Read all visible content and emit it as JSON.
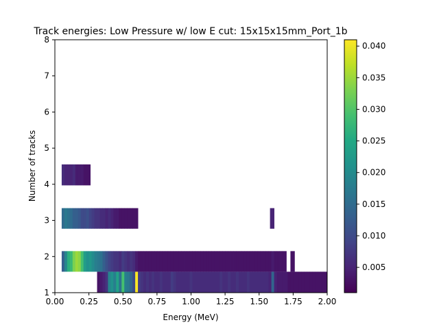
{
  "chart_data": {
    "type": "heatmap",
    "title": "Track energies: Low Pressure w/ low E cut: 15x15x15mm_Port_1b",
    "xlabel": "Energy (MeV)",
    "ylabel": "Number of tracks",
    "xlim": [
      0.0,
      2.0
    ],
    "ylim": [
      1,
      8
    ],
    "x_ticks": [
      "0.00",
      "0.25",
      "0.50",
      "0.75",
      "1.00",
      "1.25",
      "1.50",
      "1.75",
      "2.00"
    ],
    "y_ticks": [
      "1",
      "2",
      "3",
      "4",
      "5",
      "6",
      "7",
      "8"
    ],
    "colorbar": {
      "colormap": "viridis",
      "min": 0.001,
      "max": 0.041,
      "ticks": [
        "0.005",
        "0.010",
        "0.015",
        "0.020",
        "0.025",
        "0.030",
        "0.035",
        "0.040"
      ]
    },
    "bin_width": 0.02,
    "rows": [
      {
        "y": 1.0,
        "height": 0.58,
        "cells": [
          [
            0.31,
            0.33,
            0.003
          ],
          [
            0.33,
            0.35,
            0.004
          ],
          [
            0.35,
            0.37,
            0.005
          ],
          [
            0.37,
            0.39,
            0.007
          ],
          [
            0.39,
            0.41,
            0.019
          ],
          [
            0.41,
            0.43,
            0.021
          ],
          [
            0.43,
            0.45,
            0.018
          ],
          [
            0.45,
            0.47,
            0.024
          ],
          [
            0.47,
            0.49,
            0.016
          ],
          [
            0.49,
            0.51,
            0.029
          ],
          [
            0.51,
            0.53,
            0.018
          ],
          [
            0.53,
            0.55,
            0.017
          ],
          [
            0.55,
            0.57,
            0.014
          ],
          [
            0.57,
            0.59,
            0.01
          ],
          [
            0.59,
            0.61,
            0.041
          ],
          [
            0.61,
            0.63,
            0.008
          ],
          [
            0.63,
            0.65,
            0.007
          ],
          [
            0.65,
            0.67,
            0.006
          ],
          [
            0.67,
            0.69,
            0.007
          ],
          [
            0.69,
            0.71,
            0.006
          ],
          [
            0.71,
            0.73,
            0.007
          ],
          [
            0.73,
            0.75,
            0.006
          ],
          [
            0.75,
            0.77,
            0.006
          ],
          [
            0.77,
            0.79,
            0.007
          ],
          [
            0.79,
            0.81,
            0.006
          ],
          [
            0.81,
            0.83,
            0.006
          ],
          [
            0.83,
            0.85,
            0.006
          ],
          [
            0.85,
            0.87,
            0.008
          ],
          [
            0.87,
            0.89,
            0.007
          ],
          [
            0.89,
            0.91,
            0.006
          ],
          [
            0.91,
            0.93,
            0.006
          ],
          [
            0.93,
            0.95,
            0.006
          ],
          [
            0.95,
            0.97,
            0.006
          ],
          [
            0.97,
            0.99,
            0.006
          ],
          [
            0.99,
            1.01,
            0.007
          ],
          [
            1.01,
            1.03,
            0.006
          ],
          [
            1.03,
            1.05,
            0.006
          ],
          [
            1.05,
            1.07,
            0.006
          ],
          [
            1.07,
            1.09,
            0.006
          ],
          [
            1.09,
            1.11,
            0.006
          ],
          [
            1.11,
            1.13,
            0.006
          ],
          [
            1.13,
            1.15,
            0.006
          ],
          [
            1.15,
            1.17,
            0.006
          ],
          [
            1.17,
            1.19,
            0.006
          ],
          [
            1.19,
            1.21,
            0.006
          ],
          [
            1.21,
            1.23,
            0.007
          ],
          [
            1.23,
            1.25,
            0.006
          ],
          [
            1.25,
            1.27,
            0.006
          ],
          [
            1.27,
            1.29,
            0.007
          ],
          [
            1.29,
            1.31,
            0.006
          ],
          [
            1.31,
            1.33,
            0.006
          ],
          [
            1.33,
            1.35,
            0.007
          ],
          [
            1.35,
            1.37,
            0.006
          ],
          [
            1.37,
            1.39,
            0.006
          ],
          [
            1.39,
            1.41,
            0.006
          ],
          [
            1.41,
            1.43,
            0.007
          ],
          [
            1.43,
            1.45,
            0.006
          ],
          [
            1.45,
            1.47,
            0.006
          ],
          [
            1.47,
            1.49,
            0.006
          ],
          [
            1.49,
            1.51,
            0.006
          ],
          [
            1.51,
            1.53,
            0.006
          ],
          [
            1.53,
            1.55,
            0.006
          ],
          [
            1.55,
            1.57,
            0.006
          ],
          [
            1.57,
            1.59,
            0.005
          ],
          [
            1.59,
            1.61,
            0.014
          ],
          [
            1.61,
            1.63,
            0.005
          ],
          [
            1.63,
            1.65,
            0.004
          ],
          [
            1.65,
            1.67,
            0.004
          ],
          [
            1.67,
            1.69,
            0.004
          ],
          [
            1.69,
            1.71,
            0.004
          ],
          [
            1.71,
            1.73,
            0.003
          ],
          [
            1.73,
            1.75,
            0.003
          ],
          [
            1.75,
            1.77,
            0.003
          ],
          [
            1.77,
            1.79,
            0.003
          ],
          [
            1.79,
            1.81,
            0.003
          ],
          [
            1.81,
            1.83,
            0.003
          ],
          [
            1.83,
            1.85,
            0.003
          ],
          [
            1.85,
            1.87,
            0.003
          ],
          [
            1.87,
            1.89,
            0.003
          ],
          [
            1.89,
            1.91,
            0.003
          ],
          [
            1.91,
            1.93,
            0.003
          ],
          [
            1.93,
            1.95,
            0.003
          ],
          [
            1.95,
            1.97,
            0.003
          ],
          [
            1.97,
            2.0,
            0.003
          ]
        ]
      },
      {
        "y": 1.58,
        "height": 0.57,
        "cells": [
          [
            0.05,
            0.07,
            0.013
          ],
          [
            0.07,
            0.09,
            0.019
          ],
          [
            0.09,
            0.11,
            0.026
          ],
          [
            0.11,
            0.13,
            0.028
          ],
          [
            0.13,
            0.15,
            0.033
          ],
          [
            0.15,
            0.17,
            0.035
          ],
          [
            0.17,
            0.19,
            0.034
          ],
          [
            0.19,
            0.21,
            0.029
          ],
          [
            0.21,
            0.23,
            0.023
          ],
          [
            0.23,
            0.25,
            0.021
          ],
          [
            0.25,
            0.27,
            0.022
          ],
          [
            0.27,
            0.29,
            0.02
          ],
          [
            0.29,
            0.31,
            0.018
          ],
          [
            0.31,
            0.33,
            0.017
          ],
          [
            0.33,
            0.35,
            0.016
          ],
          [
            0.35,
            0.37,
            0.013
          ],
          [
            0.37,
            0.39,
            0.011
          ],
          [
            0.39,
            0.41,
            0.009
          ],
          [
            0.41,
            0.43,
            0.008
          ],
          [
            0.43,
            0.45,
            0.007
          ],
          [
            0.45,
            0.47,
            0.007
          ],
          [
            0.47,
            0.49,
            0.006
          ],
          [
            0.49,
            0.51,
            0.008
          ],
          [
            0.51,
            0.53,
            0.007
          ],
          [
            0.53,
            0.55,
            0.006
          ],
          [
            0.55,
            0.57,
            0.007
          ],
          [
            0.57,
            0.59,
            0.006
          ],
          [
            0.59,
            0.61,
            0.004
          ],
          [
            0.61,
            0.63,
            0.003
          ],
          [
            0.63,
            0.65,
            0.003
          ],
          [
            0.65,
            0.67,
            0.003
          ],
          [
            0.67,
            0.69,
            0.003
          ],
          [
            0.69,
            0.71,
            0.003
          ],
          [
            0.71,
            0.73,
            0.003
          ],
          [
            0.73,
            0.75,
            0.003
          ],
          [
            0.75,
            0.77,
            0.003
          ],
          [
            0.77,
            0.79,
            0.003
          ],
          [
            0.79,
            0.81,
            0.003
          ],
          [
            0.81,
            0.83,
            0.003
          ],
          [
            0.83,
            0.85,
            0.003
          ],
          [
            0.85,
            0.87,
            0.003
          ],
          [
            0.87,
            0.89,
            0.003
          ],
          [
            0.89,
            0.91,
            0.003
          ],
          [
            0.91,
            0.93,
            0.003
          ],
          [
            0.93,
            0.95,
            0.003
          ],
          [
            0.95,
            0.97,
            0.003
          ],
          [
            0.97,
            0.99,
            0.003
          ],
          [
            0.99,
            1.01,
            0.003
          ],
          [
            1.01,
            1.03,
            0.003
          ],
          [
            1.03,
            1.05,
            0.003
          ],
          [
            1.05,
            1.07,
            0.003
          ],
          [
            1.07,
            1.09,
            0.003
          ],
          [
            1.09,
            1.11,
            0.003
          ],
          [
            1.11,
            1.13,
            0.003
          ],
          [
            1.13,
            1.15,
            0.003
          ],
          [
            1.15,
            1.17,
            0.003
          ],
          [
            1.17,
            1.19,
            0.003
          ],
          [
            1.19,
            1.21,
            0.003
          ],
          [
            1.21,
            1.23,
            0.003
          ],
          [
            1.23,
            1.25,
            0.003
          ],
          [
            1.25,
            1.27,
            0.003
          ],
          [
            1.27,
            1.29,
            0.003
          ],
          [
            1.29,
            1.31,
            0.003
          ],
          [
            1.31,
            1.33,
            0.003
          ],
          [
            1.33,
            1.35,
            0.003
          ],
          [
            1.35,
            1.37,
            0.003
          ],
          [
            1.37,
            1.39,
            0.003
          ],
          [
            1.39,
            1.41,
            0.003
          ],
          [
            1.41,
            1.43,
            0.003
          ],
          [
            1.43,
            1.45,
            0.003
          ],
          [
            1.45,
            1.47,
            0.003
          ],
          [
            1.47,
            1.49,
            0.003
          ],
          [
            1.49,
            1.51,
            0.003
          ],
          [
            1.51,
            1.53,
            0.003
          ],
          [
            1.53,
            1.55,
            0.003
          ],
          [
            1.55,
            1.57,
            0.003
          ],
          [
            1.57,
            1.59,
            0.003
          ],
          [
            1.59,
            1.61,
            0.004
          ],
          [
            1.61,
            1.63,
            0.003
          ],
          [
            1.63,
            1.65,
            0.003
          ],
          [
            1.65,
            1.67,
            0.003
          ],
          [
            1.67,
            1.7,
            0.003
          ],
          [
            1.73,
            1.76,
            0.003
          ]
        ]
      },
      {
        "y": 2.77,
        "height": 0.57,
        "cells": [
          [
            0.05,
            0.07,
            0.015
          ],
          [
            0.07,
            0.09,
            0.017
          ],
          [
            0.09,
            0.11,
            0.016
          ],
          [
            0.11,
            0.13,
            0.015
          ],
          [
            0.13,
            0.15,
            0.013
          ],
          [
            0.15,
            0.17,
            0.013
          ],
          [
            0.17,
            0.19,
            0.012
          ],
          [
            0.19,
            0.21,
            0.01
          ],
          [
            0.21,
            0.23,
            0.01
          ],
          [
            0.23,
            0.25,
            0.011
          ],
          [
            0.25,
            0.27,
            0.009
          ],
          [
            0.27,
            0.29,
            0.008
          ],
          [
            0.29,
            0.31,
            0.007
          ],
          [
            0.31,
            0.33,
            0.007
          ],
          [
            0.33,
            0.35,
            0.006
          ],
          [
            0.35,
            0.37,
            0.006
          ],
          [
            0.37,
            0.39,
            0.005
          ],
          [
            0.39,
            0.41,
            0.006
          ],
          [
            0.41,
            0.43,
            0.005
          ],
          [
            0.43,
            0.45,
            0.004
          ],
          [
            0.45,
            0.47,
            0.004
          ],
          [
            0.47,
            0.49,
            0.003
          ],
          [
            0.49,
            0.51,
            0.003
          ],
          [
            0.51,
            0.53,
            0.003
          ],
          [
            0.53,
            0.55,
            0.003
          ],
          [
            0.55,
            0.57,
            0.003
          ],
          [
            0.57,
            0.61,
            0.003
          ],
          [
            1.58,
            1.61,
            0.005
          ]
        ]
      },
      {
        "y": 3.97,
        "height": 0.58,
        "cells": [
          [
            0.05,
            0.07,
            0.006
          ],
          [
            0.07,
            0.09,
            0.005
          ],
          [
            0.09,
            0.11,
            0.005
          ],
          [
            0.11,
            0.13,
            0.005
          ],
          [
            0.13,
            0.15,
            0.006
          ],
          [
            0.15,
            0.17,
            0.004
          ],
          [
            0.17,
            0.19,
            0.004
          ],
          [
            0.19,
            0.21,
            0.004
          ],
          [
            0.21,
            0.23,
            0.003
          ],
          [
            0.23,
            0.26,
            0.003
          ]
        ]
      }
    ]
  }
}
